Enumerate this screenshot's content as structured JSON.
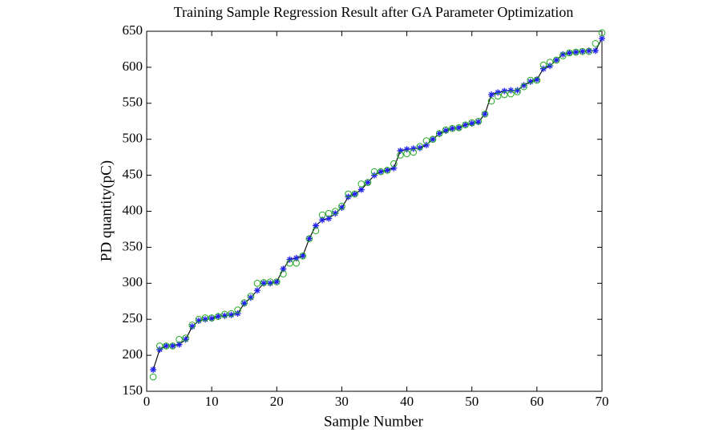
{
  "chart_data": {
    "type": "line",
    "title": "Training Sample Regression Result after GA Parameter Optimization",
    "xlabel": "Sample Number",
    "ylabel": "PD quantity(pC)",
    "x": [
      1,
      2,
      3,
      4,
      5,
      6,
      7,
      8,
      9,
      10,
      11,
      12,
      13,
      14,
      15,
      16,
      17,
      18,
      19,
      20,
      21,
      22,
      23,
      24,
      25,
      26,
      27,
      28,
      29,
      30,
      31,
      32,
      33,
      34,
      35,
      36,
      37,
      38,
      39,
      40,
      41,
      42,
      43,
      44,
      45,
      46,
      47,
      48,
      49,
      50,
      51,
      52,
      53,
      54,
      55,
      56,
      57,
      58,
      59,
      60,
      61,
      62,
      63,
      64,
      65,
      66,
      67,
      68,
      69,
      70
    ],
    "series": [
      {
        "color": "#2222ee",
        "marker": "star",
        "line": true,
        "line_color": "#111111",
        "values": [
          180,
          208,
          213,
          213,
          215,
          222,
          240,
          248,
          250,
          251,
          254,
          255,
          256,
          258,
          272,
          280,
          290,
          300,
          300,
          302,
          320,
          333,
          335,
          338,
          362,
          380,
          388,
          390,
          397,
          405,
          420,
          424,
          430,
          440,
          450,
          455,
          457,
          460,
          484,
          486,
          487,
          488,
          492,
          500,
          508,
          512,
          515,
          516,
          520,
          522,
          524,
          535,
          562,
          565,
          567,
          568,
          568,
          575,
          580,
          583,
          598,
          602,
          610,
          618,
          620,
          621,
          622,
          623,
          623,
          640
        ]
      },
      {
        "color": "#22aa22",
        "marker": "circle",
        "line": false,
        "values": [
          170,
          213,
          213,
          213,
          222,
          224,
          242,
          250,
          252,
          252,
          254,
          257,
          258,
          263,
          273,
          282,
          300,
          301,
          302,
          302,
          313,
          328,
          328,
          338,
          362,
          373,
          395,
          397,
          400,
          407,
          424,
          424,
          438,
          440,
          455,
          455,
          457,
          466,
          478,
          480,
          482,
          490,
          498,
          500,
          508,
          513,
          515,
          516,
          520,
          523,
          525,
          535,
          553,
          560,
          562,
          563,
          566,
          573,
          582,
          582,
          603,
          607,
          610,
          616,
          620,
          621,
          622,
          622,
          633,
          648
        ]
      }
    ],
    "xlim": [
      0,
      70
    ],
    "xticks": [
      0,
      10,
      20,
      30,
      40,
      50,
      60,
      70
    ],
    "ylim": [
      150,
      650
    ],
    "yticks": [
      150,
      200,
      250,
      300,
      350,
      400,
      450,
      500,
      550,
      600,
      650
    ]
  }
}
